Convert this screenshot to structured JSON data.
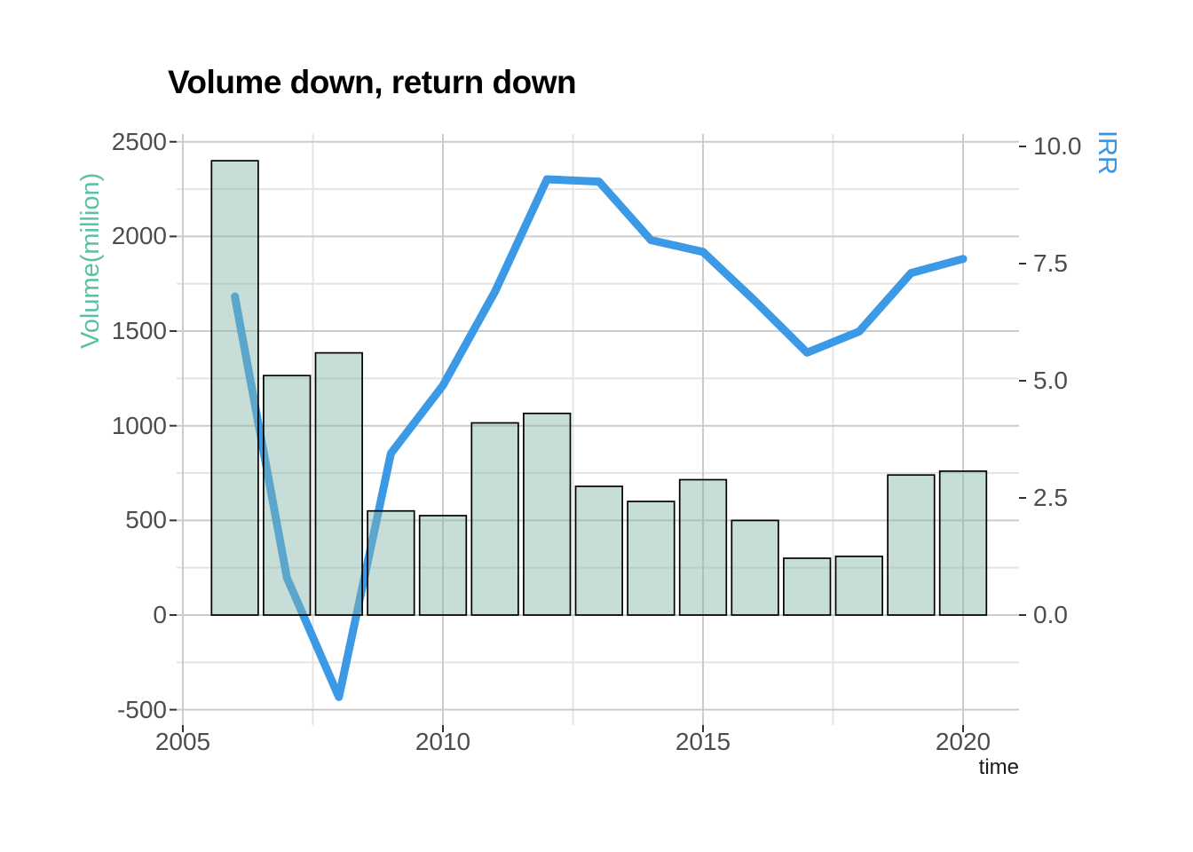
{
  "title": {
    "text": "Volume down, return down",
    "color": "#000000"
  },
  "chart_data": {
    "type": "combo",
    "title": "Volume down, return down",
    "x": [
      2006,
      2007,
      2008,
      2009,
      2010,
      2011,
      2012,
      2013,
      2014,
      2015,
      2016,
      2017,
      2018,
      2019,
      2020
    ],
    "series": [
      {
        "name": "Volume(million)",
        "type": "bar",
        "axis": "left",
        "values": [
          2400,
          1265,
          1385,
          550,
          525,
          1015,
          1065,
          680,
          600,
          715,
          500,
          300,
          310,
          740,
          760
        ]
      },
      {
        "name": "IRR",
        "type": "line",
        "axis": "right",
        "values": [
          6.8,
          0.8,
          -1.75,
          3.45,
          4.9,
          6.9,
          9.3,
          9.25,
          8.0,
          7.75,
          6.7,
          5.6,
          6.05,
          7.3,
          7.6
        ]
      }
    ],
    "axes": {
      "x": {
        "label": "time",
        "tick_labels": [
          "2005",
          "2010",
          "2015",
          "2020"
        ],
        "tick_values": [
          2005,
          2010,
          2015,
          2020
        ],
        "minor_values": [
          2007.5,
          2012.5,
          2017.5
        ]
      },
      "left": {
        "label": "Volume(million)",
        "label_color": "#5dbfa3",
        "tick_labels": [
          "2500",
          "2000",
          "1500",
          "1000",
          "500",
          "0",
          "-500"
        ],
        "tick_values": [
          2500,
          2000,
          1500,
          1000,
          500,
          0,
          -500
        ],
        "minor_values": [
          2250,
          1750,
          1250,
          750,
          250,
          -250
        ],
        "range": [
          -580,
          2540
        ]
      },
      "right": {
        "label": "IRR",
        "label_color": "#3b94e0",
        "tick_labels": [
          "10.0",
          "7.5",
          "5.0",
          "2.5",
          "0.0"
        ],
        "tick_values": [
          10.0,
          7.5,
          5.0,
          2.5,
          0.0
        ],
        "range": [
          -2.3,
          10.2
        ]
      }
    },
    "colors": {
      "bar_fill": "rgba(131,182,169,0.45)",
      "bar_stroke": "#000000",
      "line": "#3b99e6",
      "grid_major": "#cccccc",
      "grid_minor": "#e4e4e4",
      "tick_text": "#4d4d4d",
      "tick_mark": "#333333",
      "background": "#ffffff"
    },
    "legend": "none",
    "grid": "major+minor"
  }
}
